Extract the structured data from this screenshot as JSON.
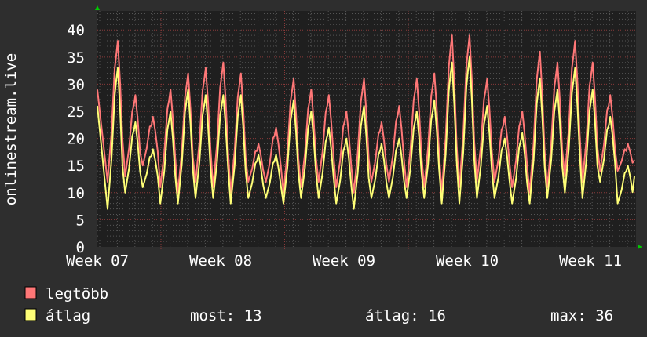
{
  "chart_data": {
    "type": "line",
    "ylabel": "onlinestream.live",
    "ylim": [
      0,
      43.5
    ],
    "yticks": [
      0,
      5,
      10,
      15,
      20,
      25,
      30,
      35,
      40
    ],
    "xticks": [
      "Week 07",
      "Week 08",
      "Week 09",
      "Week 10",
      "Week 11"
    ],
    "grid": true,
    "legend_placement": "bottom-left",
    "series": [
      {
        "name": "legtöbb",
        "color": "#ff7777",
        "start": 29,
        "end": 16,
        "daily_max": [
          38,
          28,
          24,
          29,
          32,
          33,
          34,
          32,
          19,
          22,
          31,
          29,
          28,
          25,
          31,
          23,
          26,
          31,
          32,
          39,
          39,
          31,
          24,
          25,
          36,
          34,
          38,
          34,
          28,
          19
        ],
        "daily_min": [
          12,
          13,
          15,
          11,
          10,
          12,
          11,
          10,
          12,
          12,
          10,
          11,
          12,
          11,
          10,
          12,
          12,
          11,
          11,
          10,
          11,
          12,
          12,
          11,
          10,
          11,
          13,
          12,
          14,
          14
        ]
      },
      {
        "name": "átlag",
        "color": "#ffff77",
        "start": 26,
        "end": 13,
        "daily_max": [
          33,
          23,
          18,
          25,
          29,
          28,
          28,
          28,
          17,
          17,
          27,
          25,
          22,
          20,
          26,
          19,
          20,
          25,
          27,
          34,
          35,
          26,
          20,
          21,
          31,
          29,
          33,
          29,
          24,
          15
        ],
        "daily_min": [
          7,
          10,
          11,
          8,
          8,
          9,
          9,
          8,
          9,
          9,
          8,
          9,
          9,
          8,
          7,
          9,
          9,
          9,
          9,
          8,
          8,
          9,
          9,
          8,
          8,
          9,
          10,
          9,
          12,
          8
        ]
      }
    ]
  },
  "legend": {
    "items": [
      {
        "label": "legtöbb",
        "color": "#ff7777"
      },
      {
        "label": "átlag",
        "color": "#ffff77"
      }
    ],
    "stats": {
      "now": "most: 13",
      "avg": "átlag: 16",
      "max": "max: 36"
    }
  },
  "colors": {
    "background": "#2e2e2e",
    "plot_background": "#1f1f1f",
    "minor_grid": "#555555",
    "major_grid": "#8a3a3a",
    "axis_arrow": "#00cc00"
  }
}
